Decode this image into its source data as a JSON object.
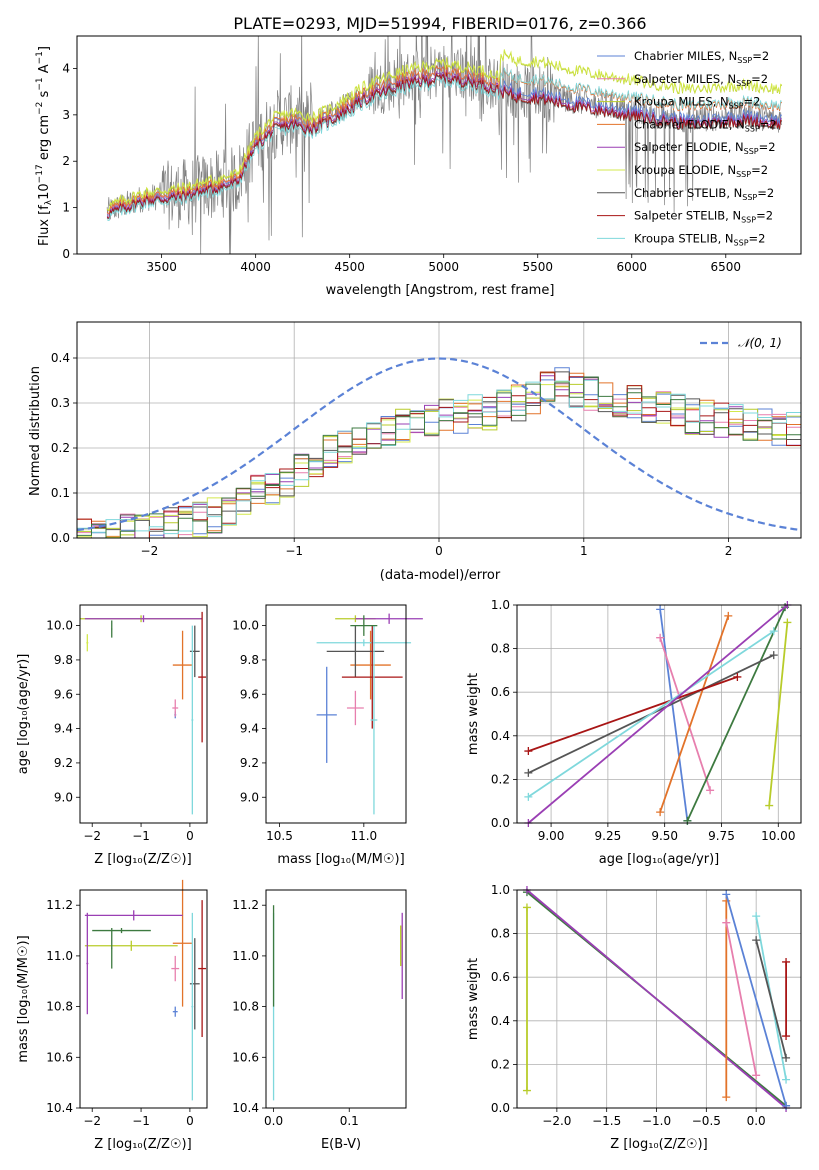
{
  "title": "PLATE=0293, MJD=51994, FIBERID=0176, z=0.366",
  "chart_data": [
    {
      "id": "spectrum",
      "type": "line",
      "xlabel": "wavelength [Angstrom, rest frame]",
      "ylabel_parts": [
        "Flux [f",
        "λ",
        "10",
        "−17",
        " erg cm",
        "−2",
        " s",
        "−1",
        " A",
        "−1",
        "]"
      ],
      "xlim": [
        3050,
        6900
      ],
      "ylim": [
        0,
        4.7
      ],
      "xticks": [
        3500,
        4000,
        4500,
        5000,
        5500,
        6000,
        6500
      ],
      "yticks": [
        0,
        1,
        2,
        3,
        4
      ],
      "grid": false,
      "legend_position": "upper-right",
      "series": [
        {
          "label_main": "Chabrier MILES, N",
          "label_sub": "SSP",
          "label_end": "=2",
          "color": "#5b82d6",
          "offset": 0.0,
          "scale": 1.0
        },
        {
          "label_main": "Salpeter MILES, N",
          "label_sub": "SSP",
          "label_end": "=2",
          "color": "#e77fae",
          "offset": 0.02,
          "scale": 1.0
        },
        {
          "label_main": "Kroupa MILES, N",
          "label_sub": "SSP",
          "label_end": "=2",
          "color": "#b8cc2a",
          "offset": 0.08,
          "scale": 1.02
        },
        {
          "label_main": "Chabrier ELODIE, N",
          "label_sub": "SSP",
          "label_end": "=2",
          "color": "#e2732a",
          "offset": 0.05,
          "scale": 0.99
        },
        {
          "label_main": "Salpeter ELODIE, N",
          "label_sub": "SSP",
          "label_end": "=2",
          "color": "#9a3fb4",
          "offset": -0.02,
          "scale": 0.98
        },
        {
          "label_main": "Kroupa ELODIE, N",
          "label_sub": "SSP",
          "label_end": "=2",
          "color": "#d3e84c",
          "offset": 0.1,
          "scale": 1.02
        },
        {
          "label_main": "Chabrier STELIB, N",
          "label_sub": "SSP",
          "label_end": "=2",
          "color": "#555555",
          "offset": -0.05,
          "scale": 0.97
        },
        {
          "label_main": "Salpeter STELIB, N",
          "label_sub": "SSP",
          "label_end": "=2",
          "color": "#a81515",
          "offset": -0.03,
          "scale": 0.97
        },
        {
          "label_main": "Kroupa STELIB, N",
          "label_sub": "SSP",
          "label_end": "=2",
          "color": "#7fd8dc",
          "offset": -0.08,
          "scale": 0.96
        }
      ],
      "data_color": "#808080",
      "continuum": [
        [
          3200,
          0.9
        ],
        [
          3400,
          1.2
        ],
        [
          3600,
          1.3
        ],
        [
          3800,
          1.5
        ],
        [
          3900,
          1.6
        ],
        [
          4000,
          2.4
        ],
        [
          4100,
          2.8
        ],
        [
          4200,
          2.9
        ],
        [
          4300,
          2.8
        ],
        [
          4400,
          3.0
        ],
        [
          4600,
          3.5
        ],
        [
          4800,
          3.8
        ],
        [
          5000,
          3.95
        ],
        [
          5200,
          3.8
        ],
        [
          5400,
          3.5
        ],
        [
          5500,
          3.5
        ],
        [
          5700,
          3.3
        ],
        [
          6000,
          3.1
        ],
        [
          6300,
          2.9
        ],
        [
          6600,
          3.0
        ],
        [
          6800,
          2.9
        ]
      ]
    },
    {
      "id": "residuals",
      "type": "histogram",
      "xlabel": "(data-model)/error",
      "ylabel": "Normed distribution",
      "xlim": [
        -2.5,
        2.5
      ],
      "ylim": [
        0,
        0.48
      ],
      "xticks": [
        -2,
        -1,
        0,
        1,
        2
      ],
      "yticks": [
        0.0,
        0.1,
        0.2,
        0.3,
        0.4
      ],
      "grid": true,
      "legend_position": "upper-right",
      "normal_label": "𝒩(0, 1)",
      "normal_color": "#5b82d6",
      "bin_width": 0.1,
      "base_profile": [
        0.005,
        0.008,
        0.01,
        0.015,
        0.02,
        0.025,
        0.03,
        0.035,
        0.04,
        0.05,
        0.06,
        0.08,
        0.1,
        0.11,
        0.13,
        0.15,
        0.17,
        0.19,
        0.2,
        0.22,
        0.23,
        0.24,
        0.25,
        0.26,
        0.26,
        0.27,
        0.27,
        0.28,
        0.28,
        0.29,
        0.3,
        0.31,
        0.33,
        0.34,
        0.33,
        0.32,
        0.31,
        0.3,
        0.3,
        0.29,
        0.29,
        0.28,
        0.27,
        0.27,
        0.26,
        0.26,
        0.25,
        0.25,
        0.24,
        0.24
      ]
    },
    {
      "id": "age_vs_Z",
      "type": "errorbar",
      "xlabel": "Z [log₁₀(Z/Z☉)]",
      "ylabel": "age  [log₁₀(age/yr)]",
      "xlim": [
        -2.25,
        0.35
      ],
      "ylim": [
        8.85,
        10.12
      ],
      "xticks": [
        -2,
        -1,
        0
      ],
      "yticks": [
        9.0,
        9.2,
        9.4,
        9.6,
        9.8,
        10.0
      ],
      "points": [
        {
          "x": -0.3,
          "xerr": 0.02,
          "y": 9.48,
          "yerr": 0.02,
          "color": "#5b82d6"
        },
        {
          "x": -0.3,
          "xerr": 0.06,
          "y": 9.52,
          "yerr": 0.05,
          "color": "#e77fae"
        },
        {
          "x": -1.0,
          "xerr": 1.25,
          "y": 10.04,
          "yerr": 0.02,
          "color": "#b8cc2a"
        },
        {
          "x": -0.15,
          "xerr": 0.2,
          "y": 9.77,
          "yerr": 0.2,
          "color": "#e2732a"
        },
        {
          "x": -0.95,
          "xerr": 1.2,
          "y": 10.04,
          "yerr": 0.02,
          "color": "#9a3fb4"
        },
        {
          "x": -2.1,
          "xerr": 0.02,
          "y": 9.9,
          "yerr": 0.05,
          "color": "#d3e84c"
        },
        {
          "x": 0.1,
          "xerr": 0.1,
          "y": 9.85,
          "yerr": 0.15,
          "color": "#555555"
        },
        {
          "x": 0.25,
          "xerr": 0.08,
          "y": 9.7,
          "yerr": 0.38,
          "color": "#a81515"
        },
        {
          "x": 0.05,
          "xerr": 0.02,
          "y": 9.45,
          "yerr": 0.55,
          "color": "#7fd8dc"
        },
        {
          "x": -1.6,
          "xerr": 0.01,
          "y": 9.98,
          "yerr": 0.05,
          "color": "#3d7a40"
        }
      ]
    },
    {
      "id": "age_vs_mass",
      "type": "errorbar",
      "xlabel": "mass [log₁₀(M/M☉)]",
      "ylabel": "",
      "xlim": [
        10.42,
        11.25
      ],
      "ylim": [
        8.85,
        10.12
      ],
      "xticks": [
        10.5,
        11.0
      ],
      "yticks": [
        9.0,
        9.2,
        9.4,
        9.6,
        9.8,
        10.0
      ],
      "points": [
        {
          "x": 10.78,
          "xerr": 0.06,
          "y": 9.48,
          "yerr": 0.28,
          "color": "#5b82d6"
        },
        {
          "x": 10.95,
          "xerr": 0.05,
          "y": 9.52,
          "yerr": 0.1,
          "color": "#e77fae"
        },
        {
          "x": 10.95,
          "xerr": 0.12,
          "y": 10.04,
          "yerr": 0.02,
          "color": "#b8cc2a"
        },
        {
          "x": 11.04,
          "xerr": 0.12,
          "y": 9.77,
          "yerr": 0.2,
          "color": "#e2732a"
        },
        {
          "x": 11.15,
          "xerr": 0.2,
          "y": 10.04,
          "yerr": 0.03,
          "color": "#9a3fb4"
        },
        {
          "x": 11.0,
          "xerr": 0.28,
          "y": 9.9,
          "yerr": 0.02,
          "color": "#7fd8dc"
        },
        {
          "x": 10.95,
          "xerr": 0.17,
          "y": 9.85,
          "yerr": 0.15,
          "color": "#555555"
        },
        {
          "x": 11.05,
          "xerr": 0.18,
          "y": 9.7,
          "yerr": 0.3,
          "color": "#a81515"
        },
        {
          "x": 11.06,
          "xerr": 0.02,
          "y": 9.45,
          "yerr": 0.55,
          "color": "#7fd8dc"
        },
        {
          "x": 11.0,
          "xerr": 0.08,
          "y": 10.0,
          "yerr": 0.06,
          "color": "#3d7a40"
        }
      ]
    },
    {
      "id": "weight_vs_age",
      "type": "line",
      "xlabel": "age  [log₁₀(age/yr)]",
      "ylabel": "mass weight",
      "xlim": [
        8.85,
        10.1
      ],
      "ylim": [
        0,
        1
      ],
      "xticks": [
        9.0,
        9.25,
        9.5,
        9.75,
        10.0
      ],
      "yticks": [
        0.0,
        0.2,
        0.4,
        0.6,
        0.8,
        1.0
      ],
      "grid": true,
      "series": [
        {
          "color": "#5b82d6",
          "x": [
            9.48,
            9.6
          ],
          "y": [
            0.98,
            0.01
          ]
        },
        {
          "color": "#e77fae",
          "x": [
            9.48,
            9.7
          ],
          "y": [
            0.85,
            0.15
          ]
        },
        {
          "color": "#e2732a",
          "x": [
            9.48,
            9.78
          ],
          "y": [
            0.05,
            0.95
          ]
        },
        {
          "color": "#b8cc2a",
          "x": [
            9.96,
            10.04
          ],
          "y": [
            0.08,
            0.92
          ]
        },
        {
          "color": "#3d7a40",
          "x": [
            9.6,
            10.03
          ],
          "y": [
            0.01,
            0.99
          ]
        },
        {
          "color": "#555555",
          "x": [
            8.9,
            9.98
          ],
          "y": [
            0.23,
            0.77
          ]
        },
        {
          "color": "#a81515",
          "x": [
            8.9,
            9.82
          ],
          "y": [
            0.33,
            0.67
          ]
        },
        {
          "color": "#7fd8dc",
          "x": [
            8.9,
            9.98
          ],
          "y": [
            0.12,
            0.88
          ]
        },
        {
          "color": "#9a3fb4",
          "x": [
            8.9,
            10.04
          ],
          "y": [
            0.0,
            1.0
          ]
        }
      ]
    },
    {
      "id": "mass_vs_Z",
      "type": "errorbar",
      "xlabel": "Z [log₁₀(Z/Z☉)]",
      "ylabel": "mass [log₁₀(M/M☉)]",
      "xlim": [
        -2.25,
        0.35
      ],
      "ylim": [
        10.4,
        11.26
      ],
      "xticks": [
        -2,
        -1,
        0
      ],
      "yticks": [
        10.4,
        10.6,
        10.8,
        11.0,
        11.2
      ],
      "points": [
        {
          "x": -0.3,
          "xerr": 0.05,
          "y": 10.78,
          "yerr": 0.02,
          "color": "#5b82d6"
        },
        {
          "x": -0.3,
          "xerr": 0.08,
          "y": 10.95,
          "yerr": 0.05,
          "color": "#e77fae"
        },
        {
          "x": -1.2,
          "xerr": 0.95,
          "y": 11.04,
          "yerr": 0.02,
          "color": "#b8cc2a"
        },
        {
          "x": -0.15,
          "xerr": 0.2,
          "y": 11.05,
          "yerr": 0.25,
          "color": "#e2732a"
        },
        {
          "x": -1.15,
          "xerr": 1.0,
          "y": 11.16,
          "yerr": 0.02,
          "color": "#9a3fb4"
        },
        {
          "x": -2.1,
          "xerr": 0.02,
          "y": 10.97,
          "yerr": 0.2,
          "color": "#9a3fb4"
        },
        {
          "x": 0.1,
          "xerr": 0.1,
          "y": 10.89,
          "yerr": 0.18,
          "color": "#555555"
        },
        {
          "x": 0.25,
          "xerr": 0.08,
          "y": 10.95,
          "yerr": 0.27,
          "color": "#a81515"
        },
        {
          "x": 0.05,
          "xerr": 0.02,
          "y": 10.8,
          "yerr": 0.37,
          "color": "#7fd8dc"
        },
        {
          "x": -1.6,
          "xerr": 0.01,
          "y": 11.03,
          "yerr": 0.08,
          "color": "#3d7a40"
        },
        {
          "x": -1.4,
          "xerr": 0.6,
          "y": 11.1,
          "yerr": 0.01,
          "color": "#3d7a40"
        }
      ]
    },
    {
      "id": "mass_vs_EBV",
      "type": "errorbar",
      "xlabel": "E(B-V)",
      "ylabel": "",
      "xlim": [
        -0.01,
        0.175
      ],
      "ylim": [
        10.4,
        11.26
      ],
      "xticks": [
        0.0,
        0.1
      ],
      "yticks": [
        10.4,
        10.6,
        10.8,
        11.0,
        11.2
      ],
      "points": [
        {
          "x": 0.0,
          "xerr": 0.0,
          "y": 10.8,
          "yerr": 0.37,
          "color": "#7fd8dc"
        },
        {
          "x": 0.0,
          "xerr": 0.0,
          "y": 11.0,
          "yerr": 0.2,
          "color": "#3d7a40"
        },
        {
          "x": 0.168,
          "xerr": 0.0,
          "y": 11.04,
          "yerr": 0.08,
          "color": "#b8cc2a"
        },
        {
          "x": 0.17,
          "xerr": 0.0,
          "y": 11.0,
          "yerr": 0.17,
          "color": "#9a3fb4"
        }
      ]
    },
    {
      "id": "weight_vs_Z",
      "type": "line",
      "xlabel": "Z [log₁₀(Z/Z☉)]",
      "ylabel": "mass weight",
      "xlim": [
        -2.4,
        0.45
      ],
      "ylim": [
        0,
        1
      ],
      "xticks": [
        -2.0,
        -1.5,
        -1.0,
        -0.5,
        0.0
      ],
      "yticks": [
        0.0,
        0.2,
        0.4,
        0.6,
        0.8,
        1.0
      ],
      "grid": true,
      "series": [
        {
          "color": "#b8cc2a",
          "x": [
            -2.3,
            -2.3
          ],
          "y": [
            0.08,
            0.92
          ]
        },
        {
          "color": "#3d7a40",
          "x": [
            -2.3,
            0.3
          ],
          "y": [
            0.99,
            0.01
          ]
        },
        {
          "color": "#9a3fb4",
          "x": [
            -2.3,
            0.3
          ],
          "y": [
            1.0,
            0.0
          ]
        },
        {
          "color": "#e2732a",
          "x": [
            -0.3,
            -0.3
          ],
          "y": [
            0.05,
            0.95
          ]
        },
        {
          "color": "#e77fae",
          "x": [
            -0.3,
            0.0
          ],
          "y": [
            0.85,
            0.15
          ]
        },
        {
          "color": "#5b82d6",
          "x": [
            -0.3,
            0.3
          ],
          "y": [
            0.98,
            0.01
          ]
        },
        {
          "color": "#7fd8dc",
          "x": [
            0.0,
            0.3
          ],
          "y": [
            0.88,
            0.13
          ]
        },
        {
          "color": "#555555",
          "x": [
            0.0,
            0.3
          ],
          "y": [
            0.77,
            0.23
          ]
        },
        {
          "color": "#a81515",
          "x": [
            0.3,
            0.3
          ],
          "y": [
            0.33,
            0.67
          ]
        }
      ]
    }
  ]
}
